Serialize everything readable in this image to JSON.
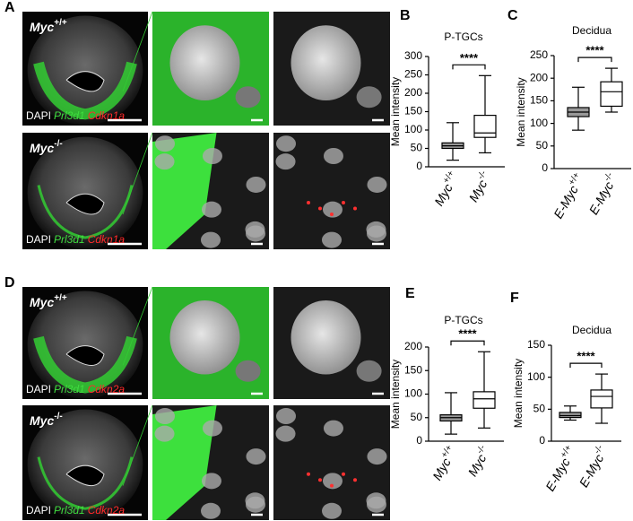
{
  "image_panels": [
    {
      "panel": "A",
      "genotype": {
        "name": "Myc",
        "sup": "+/+"
      },
      "stains": [
        "DAPI",
        "Prl3d1",
        "Cdkn1a"
      ]
    },
    {
      "genotype": {
        "name": "Myc",
        "sup": "-/-"
      },
      "stains": [
        "DAPI",
        "Prl3d1",
        "Cdkn1a"
      ]
    },
    {
      "panel": "D",
      "genotype": {
        "name": "Myc",
        "sup": "+/+"
      },
      "stains": [
        "DAPI",
        "Prl3d1",
        "Cdkn2a"
      ]
    },
    {
      "genotype": {
        "name": "Myc",
        "sup": "-/-"
      },
      "stains": [
        "DAPI",
        "Prl3d1",
        "Cdkn2a"
      ]
    }
  ],
  "chart_data": [
    {
      "type": "box",
      "panel": "B",
      "title": "P-TGCs",
      "y_label": "Mean intensity",
      "significance": "****",
      "categories": [
        {
          "name": "Myc",
          "sup": "+/+"
        },
        {
          "name": "Myc",
          "sup": "-/-"
        }
      ],
      "boxes": [
        {
          "min": 18,
          "q1": 50,
          "median": 57,
          "q3": 65,
          "max": 120,
          "color": "#999999"
        },
        {
          "min": 38,
          "q1": 80,
          "median": 92,
          "q3": 140,
          "max": 248,
          "color": "#ffffff"
        }
      ],
      "ylim": [
        0,
        300
      ],
      "yticks": [
        0,
        50,
        100,
        150,
        200,
        250,
        300
      ]
    },
    {
      "type": "box",
      "panel": "C",
      "title": "Decidua",
      "y_label": "Mean intensity",
      "significance": "****",
      "categories": [
        {
          "name": "E-Myc",
          "sup": "+/+"
        },
        {
          "name": "E-Myc",
          "sup": "-/-"
        }
      ],
      "boxes": [
        {
          "min": 85,
          "q1": 115,
          "median": 125,
          "q3": 135,
          "max": 180,
          "color": "#999999"
        },
        {
          "min": 125,
          "q1": 138,
          "median": 170,
          "q3": 192,
          "max": 222,
          "color": "#ffffff"
        }
      ],
      "ylim": [
        0,
        250
      ],
      "yticks": [
        0,
        50,
        100,
        150,
        200,
        250
      ]
    },
    {
      "type": "box",
      "panel": "E",
      "title": "P-TGCs",
      "y_label": "Mean intensity",
      "significance": "****",
      "categories": [
        {
          "name": "Myc",
          "sup": "+/+"
        },
        {
          "name": "Myc",
          "sup": "-/-"
        }
      ],
      "boxes": [
        {
          "min": 15,
          "q1": 43,
          "median": 50,
          "q3": 56,
          "max": 103,
          "color": "#999999"
        },
        {
          "min": 28,
          "q1": 70,
          "median": 90,
          "q3": 105,
          "max": 190,
          "color": "#ffffff"
        }
      ],
      "ylim": [
        0,
        200
      ],
      "yticks": [
        0,
        50,
        100,
        150,
        200
      ]
    },
    {
      "type": "box",
      "panel": "F",
      "title": "Decidua",
      "y_label": "Mean intensity",
      "significance": "****",
      "categories": [
        {
          "name": "E-Myc",
          "sup": "+/+"
        },
        {
          "name": "E-Myc",
          "sup": "-/-"
        }
      ],
      "boxes": [
        {
          "min": 33,
          "q1": 37,
          "median": 40,
          "q3": 45,
          "max": 55,
          "color": "#999999"
        },
        {
          "min": 28,
          "q1": 52,
          "median": 70,
          "q3": 80,
          "max": 105,
          "color": "#ffffff"
        }
      ],
      "ylim": [
        0,
        150
      ],
      "yticks": [
        0,
        50,
        100,
        150
      ]
    }
  ]
}
